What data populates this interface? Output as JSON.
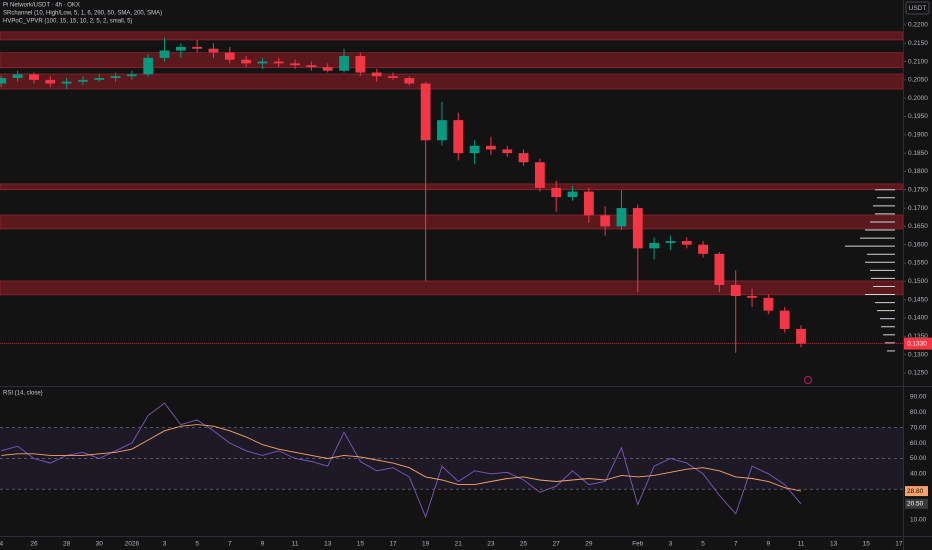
{
  "chart_data": [
    {
      "type": "candlestick",
      "title": "Pi Network/USDT · 4h · OKX",
      "indicators": [
        "SRchannel (10, High/Low, 5, 1, 6, 290, 50, SMA, 200, SMA)",
        "HVPoC_VPVR (100, 15, 15, 10, 2, 5, 2, small, 5)"
      ],
      "currency": "USDT",
      "x": [
        0,
        1,
        2,
        3,
        4,
        5,
        6,
        7,
        8,
        9,
        10,
        11,
        12,
        13,
        14,
        15,
        16,
        17,
        18,
        19,
        20,
        21,
        22,
        23,
        24,
        25,
        26,
        27,
        28,
        29,
        30,
        31,
        32,
        33,
        34,
        35,
        36,
        37,
        38,
        39,
        40,
        41,
        42,
        43,
        44,
        45,
        46,
        47,
        48,
        49
      ],
      "open": [
        0.204,
        0.2055,
        0.2065,
        0.205,
        0.204,
        0.2045,
        0.205,
        0.2055,
        0.206,
        0.2065,
        0.211,
        0.213,
        0.214,
        0.2135,
        0.2125,
        0.2105,
        0.2095,
        0.21,
        0.2095,
        0.209,
        0.2085,
        0.2075,
        0.2115,
        0.207,
        0.206,
        0.2055,
        0.204,
        0.1885,
        0.194,
        0.185,
        0.187,
        0.186,
        0.185,
        0.1825,
        0.1755,
        0.173,
        0.1745,
        0.168,
        0.165,
        0.17,
        0.159,
        0.1605,
        0.161,
        0.16,
        0.1575,
        0.149,
        0.146,
        0.1455,
        0.142,
        0.137
      ],
      "high": [
        0.206,
        0.2075,
        0.207,
        0.206,
        0.2055,
        0.206,
        0.2065,
        0.207,
        0.2075,
        0.212,
        0.2165,
        0.215,
        0.216,
        0.215,
        0.214,
        0.2115,
        0.211,
        0.211,
        0.2105,
        0.21,
        0.2095,
        0.2135,
        0.2125,
        0.208,
        0.207,
        0.206,
        0.2045,
        0.199,
        0.196,
        0.1885,
        0.1895,
        0.187,
        0.186,
        0.1835,
        0.1775,
        0.176,
        0.1755,
        0.1705,
        0.175,
        0.171,
        0.162,
        0.1625,
        0.162,
        0.161,
        0.158,
        0.153,
        0.148,
        0.1465,
        0.143,
        0.138
      ],
      "low": [
        0.203,
        0.2045,
        0.204,
        0.203,
        0.2025,
        0.2035,
        0.2045,
        0.2045,
        0.205,
        0.206,
        0.21,
        0.211,
        0.2125,
        0.211,
        0.2095,
        0.2085,
        0.208,
        0.2085,
        0.208,
        0.2075,
        0.207,
        0.207,
        0.206,
        0.2045,
        0.205,
        0.2035,
        0.15,
        0.187,
        0.183,
        0.182,
        0.1845,
        0.184,
        0.1815,
        0.1745,
        0.169,
        0.172,
        0.166,
        0.1625,
        0.164,
        0.147,
        0.156,
        0.1585,
        0.159,
        0.1565,
        0.147,
        0.1305,
        0.143,
        0.141,
        0.136,
        0.132
      ],
      "close": [
        0.2055,
        0.2065,
        0.205,
        0.204,
        0.2045,
        0.205,
        0.2055,
        0.206,
        0.2065,
        0.211,
        0.213,
        0.214,
        0.2135,
        0.2125,
        0.2105,
        0.2095,
        0.21,
        0.2095,
        0.209,
        0.2085,
        0.2075,
        0.2115,
        0.207,
        0.206,
        0.2055,
        0.204,
        0.1885,
        0.194,
        0.185,
        0.187,
        0.186,
        0.185,
        0.1825,
        0.1755,
        0.173,
        0.1745,
        0.168,
        0.165,
        0.17,
        0.159,
        0.1605,
        0.161,
        0.16,
        0.1575,
        0.149,
        0.146,
        0.1455,
        0.142,
        0.137,
        0.133
      ],
      "last_label": "0.1330",
      "up_color": "#089981",
      "down_color": "#f23645",
      "zones": [
        {
          "top": 0.2181,
          "bottom": 0.2159
        },
        {
          "top": 0.2124,
          "bottom": 0.2083
        },
        {
          "top": 0.2066,
          "bottom": 0.2025
        },
        {
          "top": 0.1766,
          "bottom": 0.175
        },
        {
          "top": 0.1681,
          "bottom": 0.1643
        },
        {
          "top": 0.1501,
          "bottom": 0.1463
        }
      ],
      "zone_color": "#7a1c24",
      "volume_profile": {
        "prices": [
          0.175,
          0.1728,
          0.1706,
          0.1684,
          0.1662,
          0.164,
          0.1618,
          0.1596,
          0.1574,
          0.1552,
          0.153,
          0.1508,
          0.1486,
          0.1464,
          0.1442,
          0.142,
          0.1398,
          0.1376,
          0.1354,
          0.1332,
          0.131
        ],
        "volumes": [
          20,
          18,
          22,
          20,
          25,
          30,
          35,
          50,
          28,
          30,
          25,
          24,
          22,
          30,
          20,
          18,
          15,
          14,
          12,
          10,
          8
        ]
      },
      "xlim": [
        -0.08,
        55.25
      ],
      "ylim": [
        0.1217,
        0.2268
      ],
      "yticks": [
        {
          "value": 0.125,
          "label": "0.1250"
        },
        {
          "value": 0.13,
          "label": "0.1300"
        },
        {
          "value": 0.135,
          "label": "0.1350"
        },
        {
          "value": 0.14,
          "label": "0.1400"
        },
        {
          "value": 0.145,
          "label": "0.1450"
        },
        {
          "value": 0.15,
          "label": "0.1500"
        },
        {
          "value": 0.155,
          "label": "0.1550"
        },
        {
          "value": 0.16,
          "label": "0.1600"
        },
        {
          "value": 0.165,
          "label": "0.1650"
        },
        {
          "value": 0.17,
          "label": "0.1700"
        },
        {
          "value": 0.175,
          "label": "0.1750"
        },
        {
          "value": 0.18,
          "label": "0.1800"
        },
        {
          "value": 0.185,
          "label": "0.1850"
        },
        {
          "value": 0.19,
          "label": "0.1900"
        },
        {
          "value": 0.195,
          "label": "0.1950"
        },
        {
          "value": 0.2,
          "label": "0.2000"
        },
        {
          "value": 0.205,
          "label": "0.2050"
        },
        {
          "value": 0.21,
          "label": "0.2100"
        },
        {
          "value": 0.215,
          "label": "0.2150"
        },
        {
          "value": 0.22,
          "label": "0.2200"
        }
      ]
    },
    {
      "type": "line",
      "title": "RSI (14, close)",
      "x": [
        0,
        1,
        2,
        3,
        4,
        5,
        6,
        7,
        8,
        9,
        10,
        11,
        12,
        13,
        14,
        15,
        16,
        17,
        18,
        19,
        20,
        21,
        22,
        23,
        24,
        25,
        26,
        27,
        28,
        29,
        30,
        31,
        32,
        33,
        34,
        35,
        36,
        37,
        38,
        39,
        40,
        41,
        42,
        43,
        44,
        45,
        46,
        47,
        48,
        49
      ],
      "series": [
        {
          "color": "#7e57c2",
          "values": [
            55,
            58,
            50,
            47,
            52,
            54,
            50,
            55,
            60,
            78,
            86,
            72,
            75,
            68,
            60,
            55,
            52,
            55,
            50,
            48,
            45,
            67,
            48,
            42,
            44,
            38,
            12,
            45,
            35,
            42,
            40,
            41,
            36,
            28,
            32,
            42,
            33,
            35,
            57,
            20,
            45,
            50,
            47,
            40,
            26,
            14,
            45,
            40,
            33,
            20.5
          ],
          "last_label": "20.50"
        },
        {
          "color": "#f7a36b",
          "values": [
            52,
            53,
            53,
            52,
            52,
            52,
            53,
            54,
            56,
            62,
            68,
            71,
            72,
            71,
            68,
            64,
            59,
            56,
            54,
            52,
            50,
            52,
            51,
            49,
            47,
            44,
            38,
            36,
            33,
            33,
            35,
            37,
            38,
            36,
            35,
            36,
            37,
            36,
            39,
            38,
            39,
            41,
            43,
            44,
            42,
            38,
            37,
            35,
            31,
            28.8
          ],
          "last_label": "28.80"
        }
      ],
      "band": [
        30,
        70
      ],
      "xlim": [
        -0.08,
        55.25
      ],
      "ylim": [
        3.5,
        95.8
      ],
      "yticks": [
        {
          "value": 10,
          "label": "10.00"
        },
        {
          "value": 20,
          "label": "20.00"
        },
        {
          "value": 30,
          "label": "30.00"
        },
        {
          "value": 40,
          "label": "40.00"
        },
        {
          "value": 50,
          "label": "50.00"
        },
        {
          "value": 60,
          "label": "60.00"
        },
        {
          "value": 70,
          "label": "70.00"
        },
        {
          "value": 80,
          "label": "80.00"
        },
        {
          "value": 90,
          "label": "90.00"
        }
      ],
      "xticks": [
        {
          "value": 0,
          "label": "4"
        },
        {
          "value": 2,
          "label": "26"
        },
        {
          "value": 4,
          "label": "28"
        },
        {
          "value": 6,
          "label": "30"
        },
        {
          "value": 8,
          "label": "2026"
        },
        {
          "value": 10,
          "label": "3"
        },
        {
          "value": 12,
          "label": "5"
        },
        {
          "value": 14,
          "label": "7"
        },
        {
          "value": 16,
          "label": "9"
        },
        {
          "value": 18,
          "label": "11"
        },
        {
          "value": 20,
          "label": "13"
        },
        {
          "value": 22,
          "label": "15"
        },
        {
          "value": 24,
          "label": "17"
        },
        {
          "value": 26,
          "label": "19"
        },
        {
          "value": 28,
          "label": "21"
        },
        {
          "value": 30,
          "label": "23"
        },
        {
          "value": 32,
          "label": "25"
        },
        {
          "value": 34,
          "label": "27"
        },
        {
          "value": 36,
          "label": "29"
        },
        {
          "value": 39,
          "label": "Feb"
        },
        {
          "value": 41,
          "label": "3"
        },
        {
          "value": 43,
          "label": "5"
        },
        {
          "value": 45,
          "label": "7"
        },
        {
          "value": 47,
          "label": "9"
        },
        {
          "value": 49,
          "label": "11"
        },
        {
          "value": 51,
          "label": "13"
        },
        {
          "value": 53,
          "label": "15"
        },
        {
          "value": 55,
          "label": "17"
        }
      ]
    }
  ]
}
